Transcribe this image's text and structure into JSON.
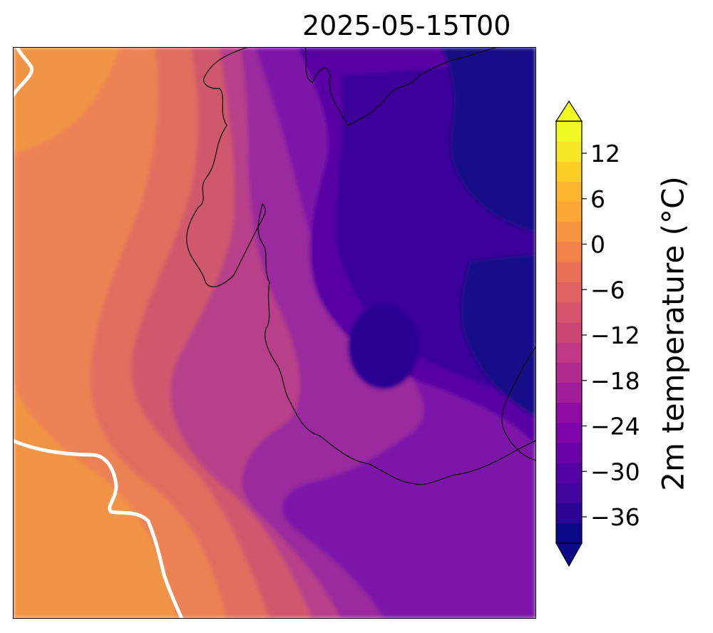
{
  "title": "2025-05-15T00",
  "colorbar": {
    "label": "2m temperature (°C)",
    "ticks": [
      "12",
      "6",
      "0",
      "−6",
      "−12",
      "−18",
      "−24",
      "−30",
      "−36"
    ],
    "colormap": "plasma",
    "colors": [
      "#0d0887",
      "#2d0594",
      "#41049d",
      "#5502a4",
      "#6a00a8",
      "#7e03a8",
      "#8f0da4",
      "#a21d9a",
      "#b12a90",
      "#bf3984",
      "#cc4778",
      "#d6556d",
      "#e16462",
      "#e97158",
      "#f2844b",
      "#f89540",
      "#fca636",
      "#fdb42f",
      "#fcce25",
      "#f6e826",
      "#f0f921"
    ]
  },
  "map_colors": {
    "warm_orange": "#f29445",
    "orange2": "#ec8253",
    "coral": "#e06e5f",
    "pink": "#d0586c",
    "magenta": "#b83f88",
    "purple": "#9a2c9d",
    "violet": "#7d13a8",
    "indigo": "#5902a4",
    "deep": "#3b0499",
    "navy": "#150888"
  }
}
